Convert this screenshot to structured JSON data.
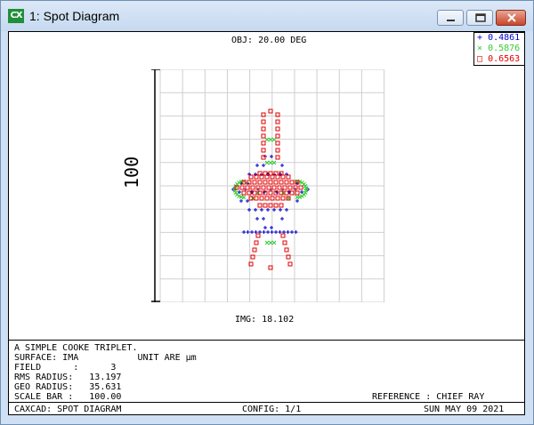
{
  "window": {
    "title": "1: Spot Diagram",
    "app_icon_text": "CX"
  },
  "plot": {
    "obj_label": "OBJ: 20.00 DEG",
    "img_label": "IMG: 18.102",
    "scale_bar_label": "100"
  },
  "legend": [
    {
      "symbol": "+",
      "wavelength": "0.4861",
      "color": "#0000cc"
    },
    {
      "symbol": "×",
      "wavelength": "0.5876",
      "color": "#33cc33"
    },
    {
      "symbol": "□",
      "wavelength": "0.6563",
      "color": "#e00000"
    }
  ],
  "info": {
    "title": "A SIMPLE COOKE TRIPLET.",
    "surface_line": "SURFACE: IMA           UNIT ARE µm",
    "field_line": "FIELD      :      3",
    "rms_line": "RMS RADIUS:   13.197",
    "geo_line": "GEO RADIUS:   35.631",
    "scale_line": "SCALE BAR :   100.00",
    "reference": "REFERENCE : CHIEF RAY"
  },
  "footer": {
    "left": "CAXCAD: SPOT DIAGRAM",
    "center": "CONFIG: 1/1",
    "right": "SUN MAY 09 2021"
  }
}
